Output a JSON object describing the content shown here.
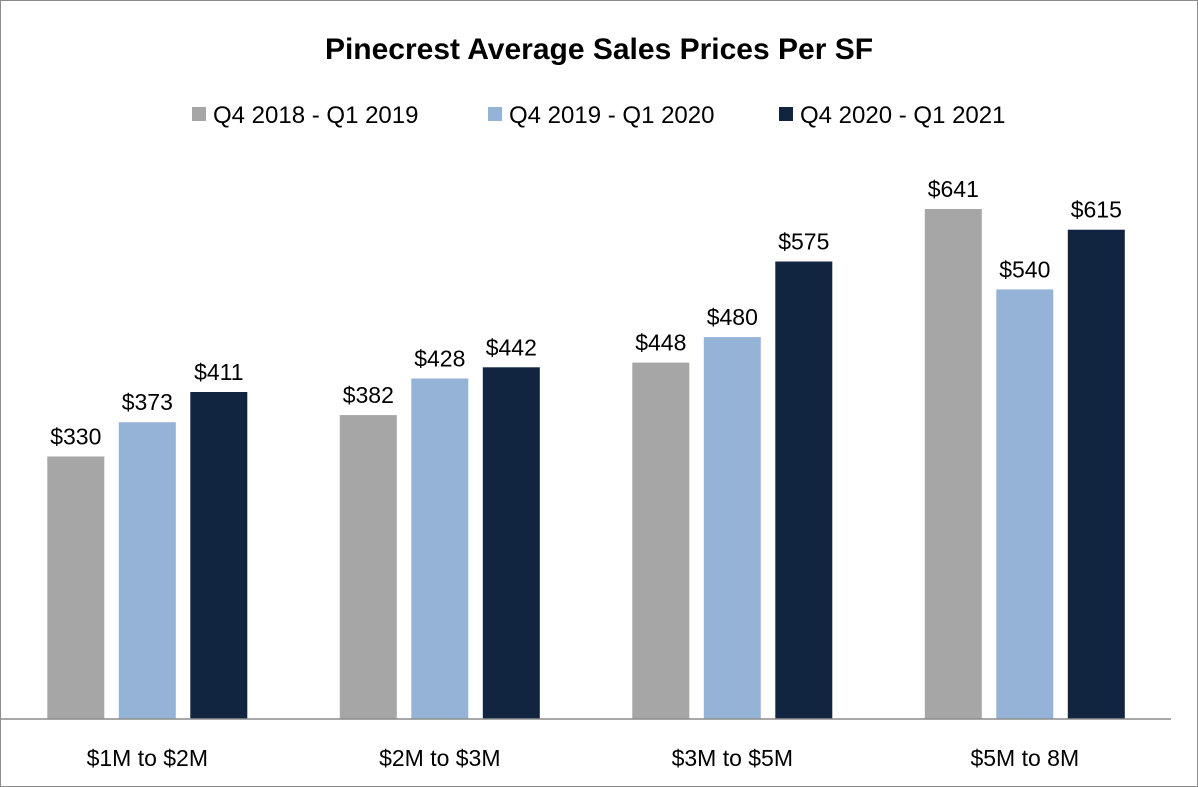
{
  "chart_data": {
    "type": "bar",
    "title": "Pinecrest Average Sales Prices Per SF",
    "xlabel": "",
    "ylabel": "",
    "categories": [
      "$1M to $2M",
      "$2M to $3M",
      "$3M to $5M",
      "$5M to 8M"
    ],
    "series": [
      {
        "name": "Q4 2018 - Q1 2019",
        "color": "#a6a6a6",
        "values": [
          330,
          382,
          448,
          641
        ],
        "labels": [
          "$330",
          "$382",
          "$448",
          "$641"
        ]
      },
      {
        "name": "Q4 2019 - Q1 2020",
        "color": "#95b3d7",
        "values": [
          373,
          428,
          480,
          540
        ],
        "labels": [
          "$373",
          "$428",
          "$480",
          "$540"
        ]
      },
      {
        "name": "Q4 2020 - Q1 2021",
        "color": "#112440",
        "values": [
          411,
          442,
          575,
          615
        ],
        "labels": [
          "$411",
          "$442",
          "$575",
          "$615"
        ]
      }
    ],
    "ylim": [
      0,
      680
    ],
    "grid": false,
    "y_axis_visible": false,
    "legend_position": "top-center"
  }
}
